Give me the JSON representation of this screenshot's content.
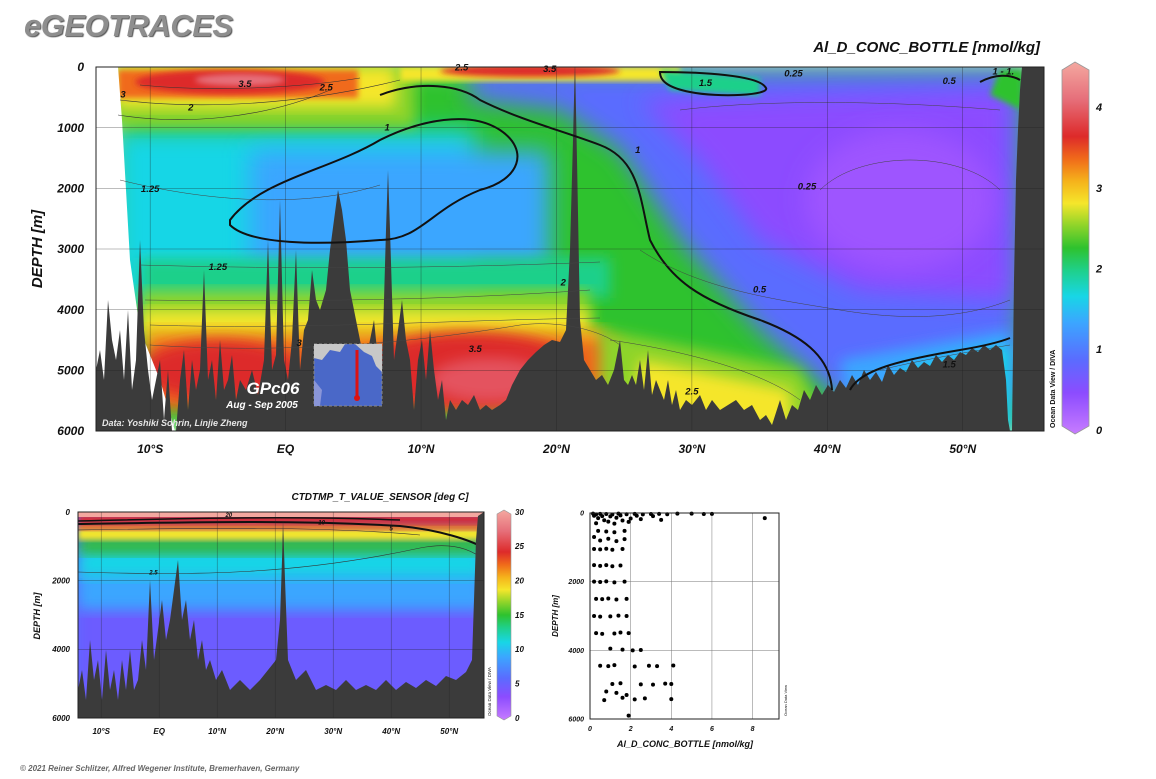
{
  "header": {
    "brand": "eGEOTRACES",
    "copyright": "© 2021 Reiner Schlitzer, Alfred Wegener Institute, Bremerhaven, Germany"
  },
  "colors": {
    "land": "#3b3b3b",
    "background": "#ffffff",
    "scale": [
      "#c77cff",
      "#8c4cff",
      "#5a6cff",
      "#3ba6ff",
      "#18d6e6",
      "#1fd08a",
      "#2ec22e",
      "#8ed42a",
      "#f5e62b",
      "#f5b21b",
      "#f06a1a",
      "#dd2a2a",
      "#e66f7a",
      "#f4a8a0"
    ]
  },
  "chart_data": [
    {
      "type": "heatmap",
      "title": "Al_D_CONC_BOTTLE [nmol/kg]",
      "xlabel": "",
      "ylabel": "DEPTH [m]",
      "x_ticks": [
        "10°S",
        "EQ",
        "10°N",
        "20°N",
        "30°N",
        "40°N",
        "50°N"
      ],
      "x_tick_values": [
        -10,
        0,
        10,
        20,
        30,
        40,
        50
      ],
      "y_ticks": [
        "0",
        "1000",
        "2000",
        "3000",
        "4000",
        "5000",
        "6000"
      ],
      "y_tick_values": [
        0,
        1000,
        2000,
        3000,
        4000,
        5000,
        6000
      ],
      "xlim": [
        -14,
        56
      ],
      "ylim": [
        6000,
        0
      ],
      "grid": true,
      "colorbar": {
        "min": 0,
        "max": 4.5,
        "ticks": [
          "0",
          "1",
          "2",
          "3",
          "4"
        ],
        "label": "Ocean Data View / DIVA"
      },
      "contour_labels": [
        {
          "text": "3",
          "x": -12,
          "y": 500
        },
        {
          "text": "3.5",
          "x": -3,
          "y": 330
        },
        {
          "text": "2.5",
          "x": 3,
          "y": 390
        },
        {
          "text": "2",
          "x": -7,
          "y": 720
        },
        {
          "text": "1.25",
          "x": -10,
          "y": 2060
        },
        {
          "text": "1.25",
          "x": -5,
          "y": 3350
        },
        {
          "text": "1",
          "x": 7.5,
          "y": 1050
        },
        {
          "text": "2.5",
          "x": 13,
          "y": 60
        },
        {
          "text": "3.5",
          "x": 19.5,
          "y": 80
        },
        {
          "text": "1.5",
          "x": 31,
          "y": 310
        },
        {
          "text": "1",
          "x": 26,
          "y": 1420
        },
        {
          "text": "0.25",
          "x": 37.5,
          "y": 160
        },
        {
          "text": "0.5",
          "x": 49,
          "y": 280
        },
        {
          "text": "1 - 1.",
          "x": 53,
          "y": 120
        },
        {
          "text": "0.25",
          "x": 38.5,
          "y": 2020
        },
        {
          "text": "2",
          "x": 20.5,
          "y": 3600
        },
        {
          "text": "0.5",
          "x": 35,
          "y": 3720
        },
        {
          "text": "3",
          "x": 1,
          "y": 4600
        },
        {
          "text": "3.5",
          "x": 14,
          "y": 4700
        },
        {
          "text": "2.5",
          "x": 30,
          "y": 5400
        },
        {
          "text": "1.5",
          "x": 49,
          "y": 4950
        }
      ],
      "annotations": [
        "GPc06",
        "Aug - Sep 2005",
        "Data: Yoshiki Sohrin, Linjie Zheng"
      ]
    },
    {
      "type": "heatmap",
      "title": "CTDTMP_T_VALUE_SENSOR [deg C]",
      "xlabel": "",
      "ylabel": "DEPTH [m]",
      "x_ticks": [
        "10°S",
        "EQ",
        "10°N",
        "20°N",
        "30°N",
        "40°N",
        "50°N"
      ],
      "x_tick_values": [
        -10,
        0,
        10,
        20,
        30,
        40,
        50
      ],
      "y_ticks": [
        "0",
        "2000",
        "4000",
        "6000"
      ],
      "y_tick_values": [
        0,
        2000,
        4000,
        6000
      ],
      "xlim": [
        -14,
        56
      ],
      "ylim": [
        6000,
        0
      ],
      "grid": true,
      "colorbar": {
        "min": 0,
        "max": 30,
        "ticks": [
          "0",
          "5",
          "10",
          "15",
          "20",
          "25",
          "30"
        ],
        "label": "Ocean Data View / DIVA"
      },
      "contour_labels": [
        {
          "text": "20",
          "x": 12,
          "y": 150
        },
        {
          "text": "10",
          "x": 28,
          "y": 360
        },
        {
          "text": "5",
          "x": 40,
          "y": 540
        },
        {
          "text": "2.5",
          "x": -1,
          "y": 1820
        }
      ]
    },
    {
      "type": "scatter",
      "title": "",
      "xlabel": "Al_D_CONC_BOTTLE [nmol/kg]",
      "ylabel": "DEPTH [m]",
      "x_ticks": [
        "0",
        "2",
        "4",
        "6",
        "8"
      ],
      "y_ticks": [
        "0",
        "2000",
        "4000",
        "6000"
      ],
      "xlim": [
        0,
        9.3
      ],
      "ylim": [
        6000,
        0
      ],
      "grid": true,
      "side_label": "Ocean Data View",
      "points": [
        [
          0.15,
          20
        ],
        [
          0.3,
          40
        ],
        [
          0.5,
          25
        ],
        [
          0.8,
          30
        ],
        [
          1.1,
          45
        ],
        [
          1.4,
          20
        ],
        [
          1.8,
          35
        ],
        [
          2.2,
          25
        ],
        [
          2.6,
          40
        ],
        [
          3.0,
          30
        ],
        [
          3.4,
          25
        ],
        [
          3.8,
          35
        ],
        [
          4.3,
          20
        ],
        [
          5.0,
          20
        ],
        [
          5.6,
          30
        ],
        [
          6.0,
          25
        ],
        [
          8.6,
          150
        ],
        [
          0.2,
          80
        ],
        [
          0.6,
          90
        ],
        [
          1.0,
          100
        ],
        [
          1.5,
          70
        ],
        [
          2.3,
          80
        ],
        [
          3.1,
          90
        ],
        [
          0.4,
          150
        ],
        [
          1.3,
          140
        ],
        [
          2.0,
          160
        ],
        [
          0.7,
          210
        ],
        [
          1.6,
          220
        ],
        [
          2.5,
          180
        ],
        [
          3.5,
          200
        ],
        [
          0.9,
          250
        ],
        [
          1.9,
          260
        ],
        [
          0.3,
          300
        ],
        [
          1.2,
          310
        ],
        [
          0.4,
          520
        ],
        [
          0.8,
          540
        ],
        [
          1.2,
          560
        ],
        [
          1.7,
          520
        ],
        [
          0.2,
          700
        ],
        [
          0.5,
          800
        ],
        [
          0.9,
          750
        ],
        [
          1.3,
          820
        ],
        [
          1.7,
          760
        ],
        [
          0.2,
          1050
        ],
        [
          0.5,
          1060
        ],
        [
          0.8,
          1040
        ],
        [
          1.1,
          1070
        ],
        [
          1.6,
          1050
        ],
        [
          0.2,
          1520
        ],
        [
          0.5,
          1540
        ],
        [
          0.8,
          1520
        ],
        [
          1.1,
          1550
        ],
        [
          1.5,
          1530
        ],
        [
          0.2,
          2000
        ],
        [
          0.5,
          2010
        ],
        [
          0.8,
          1990
        ],
        [
          1.2,
          2020
        ],
        [
          1.7,
          2000
        ],
        [
          0.3,
          2500
        ],
        [
          0.6,
          2510
        ],
        [
          0.9,
          2490
        ],
        [
          1.3,
          2520
        ],
        [
          1.8,
          2500
        ],
        [
          0.2,
          3000
        ],
        [
          0.5,
          3020
        ],
        [
          1.0,
          3010
        ],
        [
          1.4,
          2990
        ],
        [
          1.8,
          3000
        ],
        [
          0.3,
          3500
        ],
        [
          0.6,
          3520
        ],
        [
          1.2,
          3510
        ],
        [
          1.5,
          3480
        ],
        [
          1.9,
          3500
        ],
        [
          1.0,
          3950
        ],
        [
          1.6,
          3980
        ],
        [
          2.1,
          4000
        ],
        [
          2.5,
          3990
        ],
        [
          0.5,
          4450
        ],
        [
          0.9,
          4460
        ],
        [
          1.2,
          4430
        ],
        [
          2.2,
          4470
        ],
        [
          2.9,
          4450
        ],
        [
          3.3,
          4460
        ],
        [
          4.1,
          4440
        ],
        [
          1.1,
          4980
        ],
        [
          1.5,
          4960
        ],
        [
          2.5,
          4990
        ],
        [
          3.1,
          5000
        ],
        [
          3.7,
          4970
        ],
        [
          4.0,
          4980
        ],
        [
          0.8,
          5200
        ],
        [
          1.3,
          5240
        ],
        [
          1.8,
          5300
        ],
        [
          0.7,
          5450
        ],
        [
          1.6,
          5380
        ],
        [
          2.2,
          5430
        ],
        [
          2.7,
          5400
        ],
        [
          4.0,
          5420
        ],
        [
          1.9,
          5900
        ]
      ]
    }
  ]
}
